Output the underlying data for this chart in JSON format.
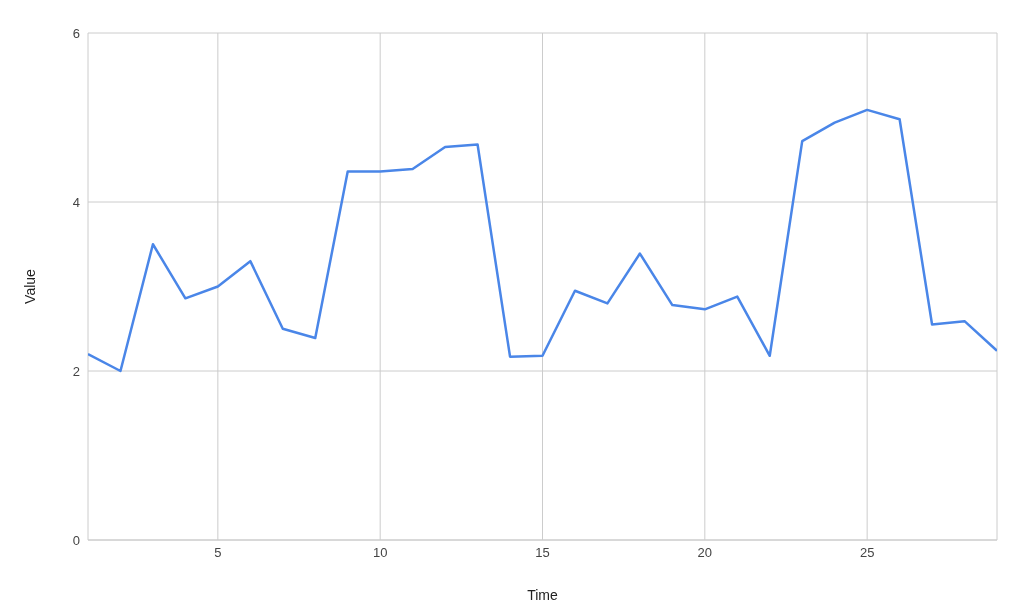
{
  "chart_data": {
    "type": "line",
    "xlabel": "Time",
    "ylabel": "Value",
    "x": [
      1,
      2,
      3,
      4,
      5,
      6,
      7,
      8,
      9,
      10,
      11,
      12,
      13,
      14,
      15,
      16,
      17,
      18,
      19,
      20,
      21,
      22,
      23,
      24,
      25,
      26,
      27,
      28,
      29
    ],
    "series": [
      {
        "color": "#4a86e8",
        "values": [
          2.2,
          2.0,
          3.5,
          2.86,
          3.0,
          3.3,
          2.5,
          2.39,
          4.36,
          4.36,
          4.39,
          4.65,
          4.68,
          2.17,
          2.18,
          2.95,
          2.8,
          3.39,
          2.78,
          2.73,
          2.88,
          2.18,
          4.72,
          4.94,
          5.09,
          4.98,
          2.55,
          2.59,
          2.24
        ]
      }
    ],
    "xlim": [
      1,
      29
    ],
    "xticks": [
      5,
      10,
      15,
      20,
      25
    ],
    "ylim": [
      0,
      6
    ],
    "yticks": [
      0,
      2,
      4,
      6
    ],
    "grid": true,
    "legend": false,
    "marker": "none",
    "line_style": "solid"
  }
}
